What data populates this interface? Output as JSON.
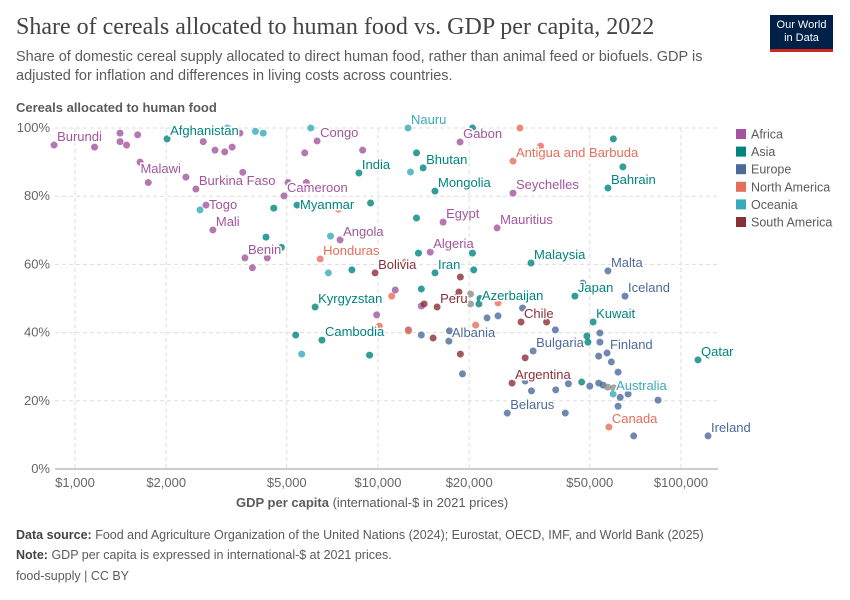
{
  "title": "Share of cereals allocated to human food vs. GDP per capita, 2022",
  "subtitle": "Share of domestic cereal supply allocated to direct human food, rather than animal feed or biofuels. GDP is adjusted for inflation and differences in living costs across countries.",
  "logo": "Our World in Data",
  "footer": {
    "source_label": "Data source:",
    "source": "Food and Agriculture Organization of the United Nations (2024); Eurostat, OECD, IMF, and World Bank (2025)",
    "note_label": "Note:",
    "note": "GDP per capita is expressed in international-$ at 2021 prices.",
    "credit": "food-supply | CC BY"
  },
  "chart_data": {
    "type": "scatter",
    "title": "Share of cereals allocated to human food vs. GDP per capita, 2022",
    "ylabel": "Cereals allocated to human food",
    "xlabel_bold": "GDP per capita",
    "xlabel_rest": "(international-$ in 2021 prices)",
    "x_scale": "log",
    "xlim": [
      850,
      130000
    ],
    "ylim": [
      0,
      100
    ],
    "grid": true,
    "legend_placement": "right",
    "x_ticks": [
      {
        "v": 1000,
        "label": "$1,000"
      },
      {
        "v": 2000,
        "label": "$2,000"
      },
      {
        "v": 5000,
        "label": "$5,000"
      },
      {
        "v": 10000,
        "label": "$10,000"
      },
      {
        "v": 20000,
        "label": "$20,000"
      },
      {
        "v": 50000,
        "label": "$50,000"
      },
      {
        "v": 100000,
        "label": "$100,000"
      }
    ],
    "y_ticks": [
      {
        "v": 0,
        "label": "0%"
      },
      {
        "v": 20,
        "label": "20%"
      },
      {
        "v": 40,
        "label": "40%"
      },
      {
        "v": 60,
        "label": "60%"
      },
      {
        "v": 80,
        "label": "80%"
      },
      {
        "v": 100,
        "label": "100%"
      }
    ],
    "regions": [
      {
        "name": "Africa",
        "color": "#a2559c"
      },
      {
        "name": "Asia",
        "color": "#00847e"
      },
      {
        "name": "Europe",
        "color": "#4c6a9c"
      },
      {
        "name": "North America",
        "color": "#e56e5a"
      },
      {
        "name": "Oceania",
        "color": "#38aaba"
      },
      {
        "name": "South America",
        "color": "#883039"
      }
    ],
    "other_color": "#8c8c8c",
    "points": [
      [
        853,
        95.0,
        "Africa",
        "Burundi"
      ],
      [
        2013,
        96.8,
        "Asia",
        "Afghanistan"
      ],
      [
        2323,
        85.6,
        "Africa",
        "Malawi"
      ],
      [
        2506,
        82.1,
        "Africa",
        "Burkina Faso"
      ],
      [
        2706,
        77.4,
        "Africa",
        "Togo"
      ],
      [
        2851,
        70.1,
        "Africa",
        "Mali"
      ],
      [
        3638,
        61.9,
        "Africa",
        "Benin"
      ],
      [
        4896,
        80.1,
        "Africa",
        "Cameroon"
      ],
      [
        6295,
        96.2,
        "Africa",
        "Congo"
      ],
      [
        5405,
        77.4,
        "Asia",
        "Myanmar"
      ],
      [
        8650,
        86.8,
        "Asia",
        "India"
      ],
      [
        7497,
        67.2,
        "Africa",
        "Angola"
      ],
      [
        6444,
        61.6,
        "North America",
        "Honduras"
      ],
      [
        6200,
        47.5,
        "Asia",
        "Kyrgyzstan"
      ],
      [
        6533,
        37.8,
        "Asia",
        "Cambodia"
      ],
      [
        9780,
        57.5,
        "South America",
        "Bolivia"
      ],
      [
        12560,
        100,
        "Oceania",
        "Nauru"
      ],
      [
        18660,
        95.9,
        "Africa",
        "Gabon"
      ],
      [
        14090,
        88.3,
        "Asia",
        "Bhutan"
      ],
      [
        15420,
        81.5,
        "Asia",
        "Mongolia"
      ],
      [
        27900,
        90.3,
        "North America",
        "Antigua and Barbuda"
      ],
      [
        27900,
        80.9,
        "Africa",
        "Seychelles"
      ],
      [
        57400,
        82.4,
        "Asia",
        "Bahrain"
      ],
      [
        16400,
        72.4,
        "Africa",
        "Egypt"
      ],
      [
        24720,
        70.7,
        "Africa",
        "Mauritius"
      ],
      [
        14870,
        63.6,
        "Africa",
        "Algeria"
      ],
      [
        15420,
        57.5,
        "Asia",
        "Iran"
      ],
      [
        31990,
        60.4,
        "Asia",
        "Malaysia"
      ],
      [
        57400,
        58.1,
        "Europe",
        "Malta"
      ],
      [
        44650,
        50.7,
        "Asia",
        "Japan"
      ],
      [
        65350,
        50.7,
        "Europe",
        "Iceland"
      ],
      [
        21530,
        48.4,
        "Asia",
        "Azerbaijan"
      ],
      [
        15670,
        47.5,
        "South America",
        "Peru"
      ],
      [
        29650,
        43.1,
        "South America",
        "Chile"
      ],
      [
        51290,
        43.1,
        "Asia",
        "Kuwait"
      ],
      [
        17140,
        37.5,
        "Europe",
        "Albania"
      ],
      [
        32510,
        34.6,
        "Europe",
        "Bulgaria"
      ],
      [
        57000,
        34.0,
        "Europe",
        "Finland"
      ],
      [
        113800,
        32.0,
        "Asia",
        "Qatar"
      ],
      [
        27700,
        25.2,
        "South America",
        "Argentina"
      ],
      [
        59700,
        22.0,
        "Oceania",
        "Australia"
      ],
      [
        26700,
        16.4,
        "Europe",
        "Belarus"
      ],
      [
        57800,
        12.3,
        "North America",
        "Canada"
      ],
      [
        122800,
        9.7,
        "Europe",
        "Ireland"
      ],
      [
        1160,
        94.4,
        "Africa",
        ""
      ],
      [
        1408,
        98.5,
        "Africa",
        ""
      ],
      [
        1408,
        96,
        "Africa",
        ""
      ],
      [
        1480,
        95,
        "Africa",
        ""
      ],
      [
        1610,
        98,
        "Africa",
        ""
      ],
      [
        1640,
        90,
        "Africa",
        ""
      ],
      [
        1745,
        84,
        "Africa",
        ""
      ],
      [
        2898,
        93.5,
        "Africa",
        ""
      ],
      [
        3120,
        93,
        "Africa",
        ""
      ],
      [
        3300,
        94.4,
        "Africa",
        ""
      ],
      [
        3500,
        98.5,
        "Africa",
        ""
      ],
      [
        2650,
        96,
        "Africa",
        ""
      ],
      [
        3580,
        87,
        "Africa",
        ""
      ],
      [
        5050,
        84,
        "Africa",
        ""
      ],
      [
        5800,
        84,
        "Africa",
        ""
      ],
      [
        5730,
        92.7,
        "Africa",
        ""
      ],
      [
        8900,
        93.5,
        "Africa",
        ""
      ],
      [
        3850,
        59,
        "Africa",
        ""
      ],
      [
        4310,
        61.9,
        "Africa",
        ""
      ],
      [
        9900,
        45.2,
        "Africa",
        ""
      ],
      [
        11400,
        52.5,
        "Africa",
        ""
      ],
      [
        12600,
        40.8,
        "Africa",
        ""
      ],
      [
        13900,
        47.8,
        "Africa",
        ""
      ],
      [
        4530,
        76.5,
        "Asia",
        ""
      ],
      [
        4270,
        68,
        "Asia",
        ""
      ],
      [
        4800,
        65,
        "Asia",
        ""
      ],
      [
        9450,
        78,
        "Asia",
        ""
      ],
      [
        13400,
        92.7,
        "Asia",
        ""
      ],
      [
        13400,
        73.6,
        "Asia",
        ""
      ],
      [
        13600,
        63.3,
        "Asia",
        ""
      ],
      [
        20500,
        63.3,
        "Asia",
        ""
      ],
      [
        20700,
        58.4,
        "Asia",
        ""
      ],
      [
        8200,
        58.4,
        "Asia",
        ""
      ],
      [
        13900,
        52.8,
        "Asia",
        ""
      ],
      [
        21700,
        50,
        "Asia",
        ""
      ],
      [
        59800,
        96.8,
        "Asia",
        ""
      ],
      [
        64300,
        88.6,
        "Asia",
        ""
      ],
      [
        49300,
        37.2,
        "Asia",
        ""
      ],
      [
        48900,
        39,
        "Asia",
        ""
      ],
      [
        9380,
        33.4,
        "Asia",
        ""
      ],
      [
        5350,
        39.3,
        "Asia",
        ""
      ],
      [
        47000,
        25.5,
        "Asia",
        ""
      ],
      [
        20500,
        100,
        "Asia",
        ""
      ],
      [
        47400,
        54.5,
        "Europe",
        ""
      ],
      [
        30000,
        47.2,
        "Europe",
        ""
      ],
      [
        22900,
        44.3,
        "Europe",
        ""
      ],
      [
        38500,
        40.8,
        "Europe",
        ""
      ],
      [
        54000,
        39.9,
        "Europe",
        ""
      ],
      [
        54000,
        37.2,
        "Europe",
        ""
      ],
      [
        53500,
        33.1,
        "Europe",
        ""
      ],
      [
        58900,
        31.4,
        "Europe",
        ""
      ],
      [
        62000,
        28.4,
        "Europe",
        ""
      ],
      [
        42500,
        25,
        "Europe",
        ""
      ],
      [
        35300,
        27,
        "Europe",
        ""
      ],
      [
        38600,
        23.2,
        "Europe",
        ""
      ],
      [
        32100,
        22.9,
        "Europe",
        ""
      ],
      [
        30600,
        25.8,
        "Europe",
        ""
      ],
      [
        50000,
        24.3,
        "Europe",
        ""
      ],
      [
        53500,
        25.2,
        "Europe",
        ""
      ],
      [
        55300,
        24.6,
        "Europe",
        ""
      ],
      [
        66900,
        22,
        "Europe",
        ""
      ],
      [
        84000,
        20.2,
        "Europe",
        ""
      ],
      [
        63000,
        21,
        "Europe",
        ""
      ],
      [
        62000,
        18.4,
        "Europe",
        ""
      ],
      [
        69800,
        9.7,
        "Europe",
        ""
      ],
      [
        41500,
        16.4,
        "Europe",
        ""
      ],
      [
        24900,
        44.9,
        "Europe",
        ""
      ],
      [
        17200,
        40.5,
        "Europe",
        ""
      ],
      [
        13900,
        39.3,
        "Europe",
        ""
      ],
      [
        19000,
        27.9,
        "Europe",
        ""
      ],
      [
        131000,
        33.7,
        "Europe",
        ""
      ],
      [
        70500,
        14.7,
        "Europe",
        ""
      ],
      [
        29400,
        100,
        "North America",
        ""
      ],
      [
        34400,
        94.7,
        "North America",
        ""
      ],
      [
        12300,
        60.7,
        "North America",
        ""
      ],
      [
        11100,
        50.7,
        "North America",
        ""
      ],
      [
        10100,
        41.9,
        "North America",
        ""
      ],
      [
        12600,
        40.5,
        "North America",
        ""
      ],
      [
        21000,
        42.2,
        "North America",
        ""
      ],
      [
        24900,
        48.7,
        "North America",
        ""
      ],
      [
        7400,
        76.2,
        "North America",
        ""
      ],
      [
        14200,
        48.4,
        "South America",
        ""
      ],
      [
        18200,
        50.4,
        "South America",
        ""
      ],
      [
        18500,
        51.9,
        "South America",
        ""
      ],
      [
        18700,
        56.3,
        "South America",
        ""
      ],
      [
        15200,
        38.4,
        "South America",
        ""
      ],
      [
        18700,
        33.7,
        "South America",
        ""
      ],
      [
        30600,
        32.6,
        "South America",
        ""
      ],
      [
        36000,
        43.1,
        "South America",
        ""
      ],
      [
        3180,
        100,
        "Oceania",
        ""
      ],
      [
        3940,
        99,
        "Oceania",
        ""
      ],
      [
        4180,
        98.5,
        "Oceania",
        ""
      ],
      [
        2586,
        76,
        "Oceania",
        ""
      ],
      [
        12800,
        87.1,
        "Oceania",
        ""
      ],
      [
        6970,
        68.3,
        "Oceania",
        ""
      ],
      [
        6860,
        57.5,
        "Oceania",
        ""
      ],
      [
        5600,
        33.7,
        "Oceania",
        ""
      ],
      [
        6000,
        100,
        "Oceania",
        ""
      ],
      [
        7780,
        77,
        "",
        ""
      ],
      [
        20200,
        51.3,
        "",
        ""
      ],
      [
        20200,
        48.4,
        "",
        ""
      ],
      [
        57300,
        24,
        "",
        ""
      ],
      [
        60000,
        23.8,
        "",
        ""
      ]
    ]
  }
}
